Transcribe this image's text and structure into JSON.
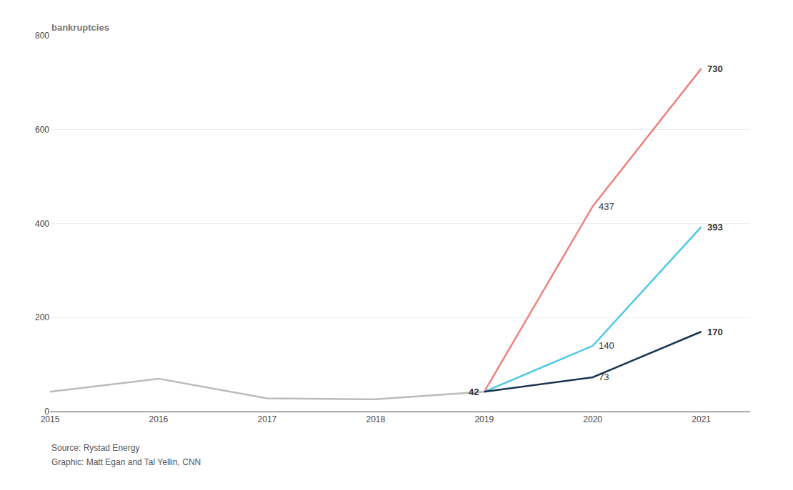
{
  "chart_data": {
    "type": "line",
    "ylabel": "bankruptcies",
    "x": [
      2015,
      2016,
      2017,
      2018,
      2019,
      2020,
      2021
    ],
    "series": [
      {
        "color": "#bbbbbb",
        "values": [
          42,
          70,
          28,
          26,
          42,
          null,
          null
        ]
      },
      {
        "color": "#f08080",
        "values": [
          null,
          null,
          null,
          null,
          42,
          437,
          730
        ]
      },
      {
        "color": "#4dc8e8",
        "values": [
          null,
          null,
          null,
          null,
          42,
          140,
          393
        ]
      },
      {
        "color": "#1a3550",
        "values": [
          null,
          null,
          null,
          null,
          42,
          73,
          170
        ]
      }
    ],
    "annotations": [
      {
        "text": "42",
        "x": 2019,
        "y": 42
      },
      {
        "text": "437",
        "x": 2020,
        "y": 437
      },
      {
        "text": "140",
        "x": 2020,
        "y": 140
      },
      {
        "text": "73",
        "x": 2020,
        "y": 73
      },
      {
        "text": "730",
        "x": 2021,
        "y": 730
      },
      {
        "text": "393",
        "x": 2021,
        "y": 393
      },
      {
        "text": "170",
        "x": 2021,
        "y": 170
      }
    ],
    "footnotes": [
      "Source: Rystad Energy",
      "Graphic: Matt Egan and Tal Yellin, CNN"
    ],
    "xlim": [
      2015,
      2021.45
    ],
    "xticks": [
      2015,
      2016,
      2017,
      2018,
      2019,
      2020,
      2021
    ],
    "ylim": [
      0,
      800
    ],
    "yticks": [
      0,
      200,
      400,
      600,
      800
    ],
    "grid": "y"
  }
}
